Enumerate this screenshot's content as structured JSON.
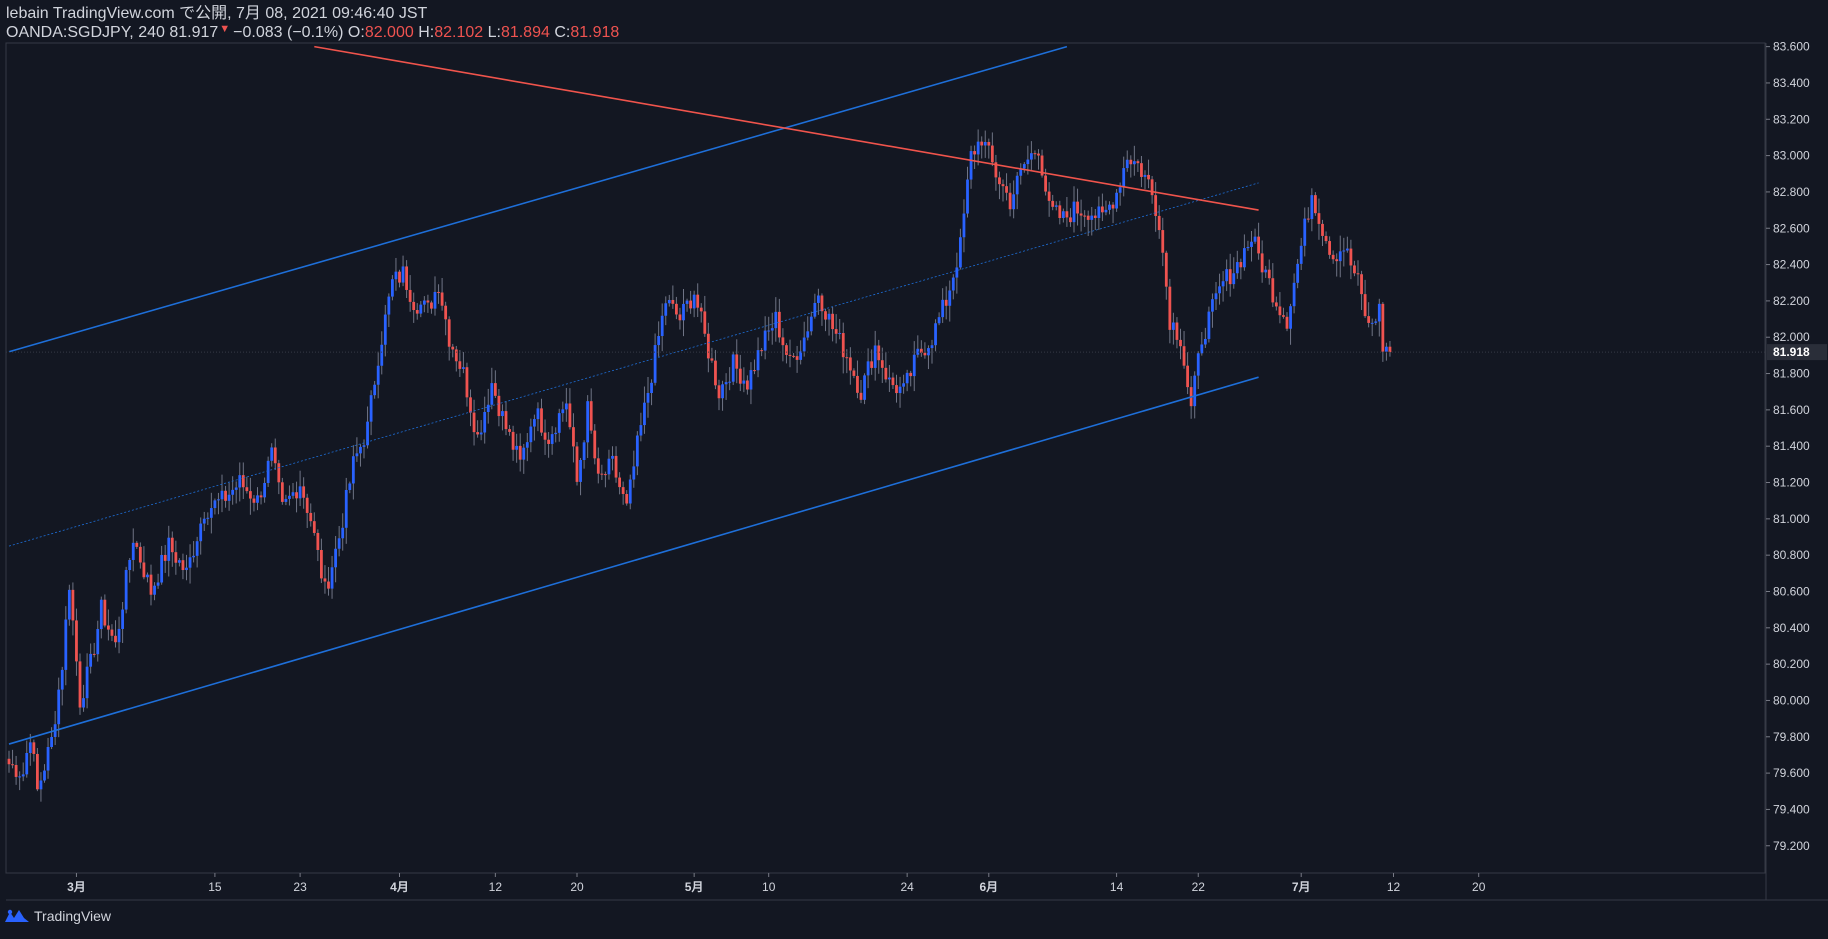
{
  "header": {
    "line1": "lebain TradingView.com で公開, 7月 08, 2021 09:46:40 JST",
    "symbol": "OANDA:SGDJPY, 240",
    "last": "81.917",
    "change": "−0.083 (−0.1%)",
    "o_label": "O:",
    "o": "82.000",
    "h_label": "H:",
    "h": "82.102",
    "l_label": "L:",
    "l": "81.894",
    "c_label": "C:",
    "c": "81.918"
  },
  "footer": {
    "brand": "TradingView"
  },
  "colors": {
    "up": "#2962ff",
    "down": "#ef5350",
    "background": "#131722",
    "channel": "#1e6fd9",
    "resistance": "#f0544c",
    "text": "#d1d4dc"
  },
  "chart_data": {
    "type": "candlestick",
    "ylim": [
      79.05,
      83.62
    ],
    "price_ticks": [
      "83.600",
      "83.400",
      "83.200",
      "83.000",
      "82.800",
      "82.600",
      "82.400",
      "82.200",
      "82.000",
      "81.800",
      "81.600",
      "81.400",
      "81.200",
      "81.000",
      "80.800",
      "80.600",
      "80.400",
      "80.200",
      "80.000",
      "79.800",
      "79.600",
      "79.400",
      "79.200"
    ],
    "last_price_label": "81.918",
    "x_ticks": [
      {
        "label": "3月",
        "bold": true,
        "i": 19
      },
      {
        "label": "15",
        "bold": false,
        "i": 58
      },
      {
        "label": "23",
        "bold": false,
        "i": 82
      },
      {
        "label": "4月",
        "bold": true,
        "i": 110
      },
      {
        "label": "12",
        "bold": false,
        "i": 137
      },
      {
        "label": "20",
        "bold": false,
        "i": 160
      },
      {
        "label": "5月",
        "bold": true,
        "i": 193
      },
      {
        "label": "10",
        "bold": false,
        "i": 214
      },
      {
        "label": "24",
        "bold": false,
        "i": 253
      },
      {
        "label": "6月",
        "bold": true,
        "i": 276
      },
      {
        "label": "14",
        "bold": false,
        "i": 312
      },
      {
        "label": "22",
        "bold": false,
        "i": 335
      },
      {
        "label": "7月",
        "bold": true,
        "i": 364
      },
      {
        "label": "12",
        "bold": false,
        "i": 390
      },
      {
        "label": "20",
        "bold": false,
        "i": 414
      }
    ],
    "series": [
      {
        "name": "OANDA:SGDJPY",
        "close_path": [
          [
            0,
            79.65
          ],
          [
            4,
            79.6
          ],
          [
            6,
            79.82
          ],
          [
            8,
            79.5
          ],
          [
            12,
            79.78
          ],
          [
            15,
            80.2
          ],
          [
            17,
            80.65
          ],
          [
            20,
            80.0
          ],
          [
            23,
            80.2
          ],
          [
            26,
            80.5
          ],
          [
            30,
            80.3
          ],
          [
            35,
            80.9
          ],
          [
            40,
            80.6
          ],
          [
            45,
            80.85
          ],
          [
            50,
            80.7
          ],
          [
            55,
            81.05
          ],
          [
            60,
            81.1
          ],
          [
            65,
            81.2
          ],
          [
            70,
            81.1
          ],
          [
            74,
            81.35
          ],
          [
            77,
            81.05
          ],
          [
            82,
            81.2
          ],
          [
            85,
            81.0
          ],
          [
            89,
            80.6
          ],
          [
            93,
            80.9
          ],
          [
            97,
            81.3
          ],
          [
            101,
            81.5
          ],
          [
            104,
            81.9
          ],
          [
            108,
            82.3
          ],
          [
            111,
            82.35
          ],
          [
            114,
            82.2
          ],
          [
            118,
            82.15
          ],
          [
            121,
            82.3
          ],
          [
            124,
            82.0
          ],
          [
            128,
            81.8
          ],
          [
            132,
            81.45
          ],
          [
            136,
            81.75
          ],
          [
            140,
            81.5
          ],
          [
            144,
            81.3
          ],
          [
            148,
            81.6
          ],
          [
            152,
            81.45
          ],
          [
            157,
            81.65
          ],
          [
            160,
            81.2
          ],
          [
            163,
            81.6
          ],
          [
            166,
            81.2
          ],
          [
            170,
            81.3
          ],
          [
            174,
            81.05
          ],
          [
            177,
            81.4
          ],
          [
            181,
            81.8
          ],
          [
            185,
            82.2
          ],
          [
            189,
            82.1
          ],
          [
            193,
            82.25
          ],
          [
            196,
            82.0
          ],
          [
            200,
            81.7
          ],
          [
            204,
            81.85
          ],
          [
            208,
            81.75
          ],
          [
            212,
            81.95
          ],
          [
            216,
            82.1
          ],
          [
            220,
            81.85
          ],
          [
            224,
            82.0
          ],
          [
            228,
            82.25
          ],
          [
            232,
            82.05
          ],
          [
            236,
            81.9
          ],
          [
            240,
            81.7
          ],
          [
            244,
            81.95
          ],
          [
            248,
            81.75
          ],
          [
            252,
            81.7
          ],
          [
            256,
            81.9
          ],
          [
            260,
            82.0
          ],
          [
            264,
            82.2
          ],
          [
            268,
            82.5
          ],
          [
            271,
            83.0
          ],
          [
            274,
            83.1
          ],
          [
            278,
            82.9
          ],
          [
            282,
            82.75
          ],
          [
            286,
            82.95
          ],
          [
            290,
            83.05
          ],
          [
            293,
            82.7
          ],
          [
            297,
            82.65
          ],
          [
            300,
            82.7
          ],
          [
            304,
            82.7
          ],
          [
            308,
            82.65
          ],
          [
            312,
            82.8
          ],
          [
            315,
            83.0
          ],
          [
            318,
            82.95
          ],
          [
            321,
            82.85
          ],
          [
            324,
            82.65
          ],
          [
            327,
            82.1
          ],
          [
            330,
            82.0
          ],
          [
            333,
            81.6
          ],
          [
            336,
            82.0
          ],
          [
            339,
            82.15
          ],
          [
            342,
            82.3
          ],
          [
            346,
            82.4
          ],
          [
            350,
            82.55
          ],
          [
            353,
            82.4
          ],
          [
            357,
            82.2
          ],
          [
            360,
            82.1
          ],
          [
            364,
            82.5
          ],
          [
            367,
            82.8
          ],
          [
            370,
            82.6
          ],
          [
            373,
            82.45
          ],
          [
            376,
            82.5
          ],
          [
            380,
            82.3
          ],
          [
            383,
            82.05
          ],
          [
            386,
            82.15
          ],
          [
            387,
            81.95
          ],
          [
            389,
            81.918
          ]
        ]
      }
    ],
    "channel_upper": [
      [
        0,
        81.92
      ],
      [
        298,
        83.6
      ]
    ],
    "channel_lower": [
      [
        0,
        79.76
      ],
      [
        352,
        81.78
      ]
    ],
    "channel_mid": [
      [
        0,
        80.85
      ],
      [
        352,
        82.85
      ]
    ],
    "resistance": [
      [
        86,
        83.6
      ],
      [
        352,
        82.7
      ]
    ]
  }
}
